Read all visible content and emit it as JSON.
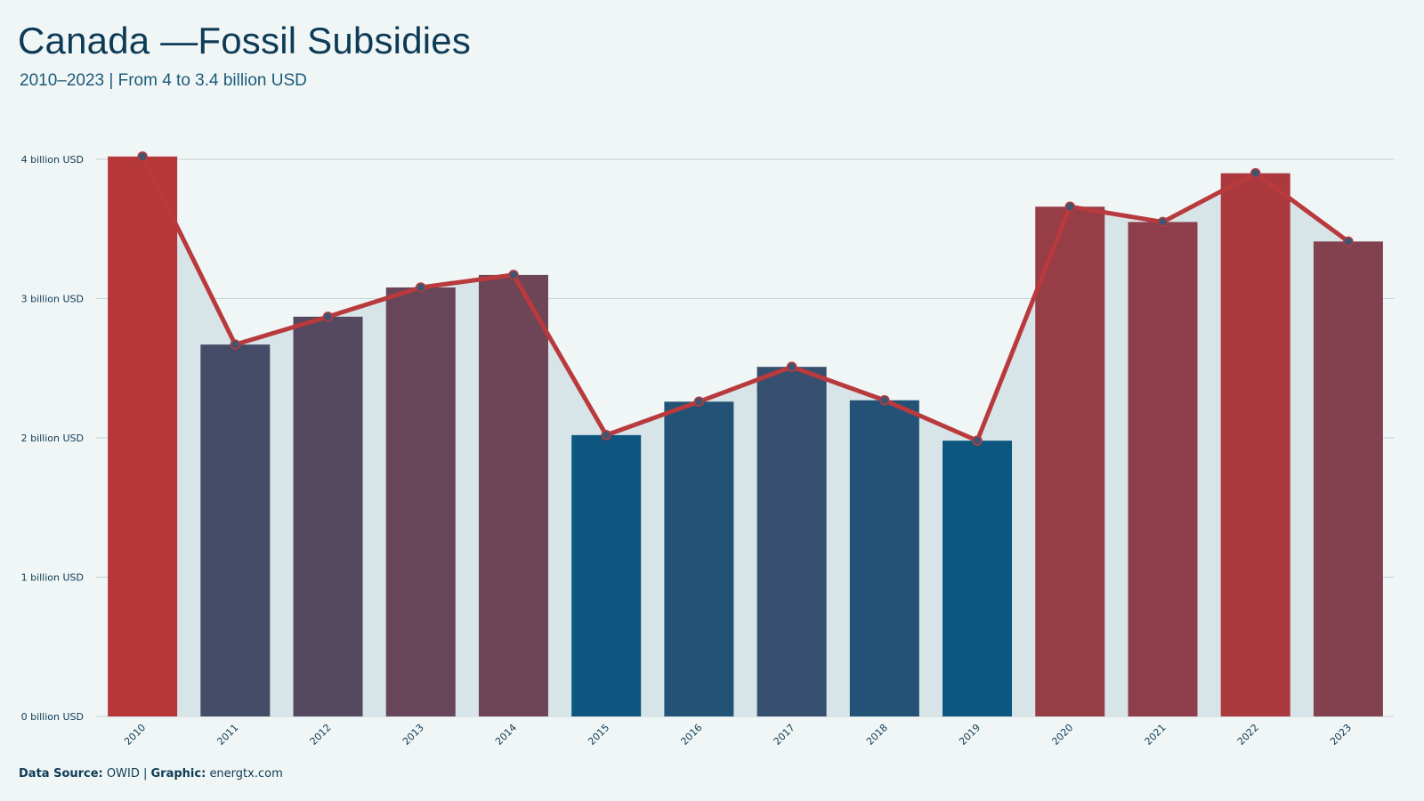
{
  "chart_data": {
    "type": "bar",
    "title": "Canada —Fossil Subsidies",
    "subtitle": "2010–2023 | From 4 to 3.4 billion USD",
    "xlabel": "",
    "ylabel": "",
    "categories": [
      "2010",
      "2011",
      "2012",
      "2013",
      "2014",
      "2015",
      "2016",
      "2017",
      "2018",
      "2019",
      "2020",
      "2021",
      "2022",
      "2023"
    ],
    "values": [
      4.02,
      2.67,
      2.87,
      3.08,
      3.17,
      2.02,
      2.26,
      2.51,
      2.27,
      1.98,
      3.66,
      3.55,
      3.9,
      3.41
    ],
    "overlay": "line",
    "ylim": [
      0,
      4
    ],
    "yticks": [
      0,
      1,
      2,
      3,
      4
    ],
    "ytick_labels": [
      "0 billion USD",
      "1 billion USD",
      "2 billion USD",
      "3 billion USD",
      "4 billion USD"
    ],
    "grid": true,
    "colors": {
      "high": "#b5373a",
      "low": "#0b5780",
      "line": "#b83a3d",
      "area": "#d8e5e8",
      "grid": "#c5d3d7",
      "marker": "#3f5570"
    }
  },
  "footer": {
    "source_label": "Data  Source:",
    "source_value": "OWID",
    "separator": "|",
    "graphic_label": "Graphic:",
    "graphic_value": "energtx.com"
  }
}
